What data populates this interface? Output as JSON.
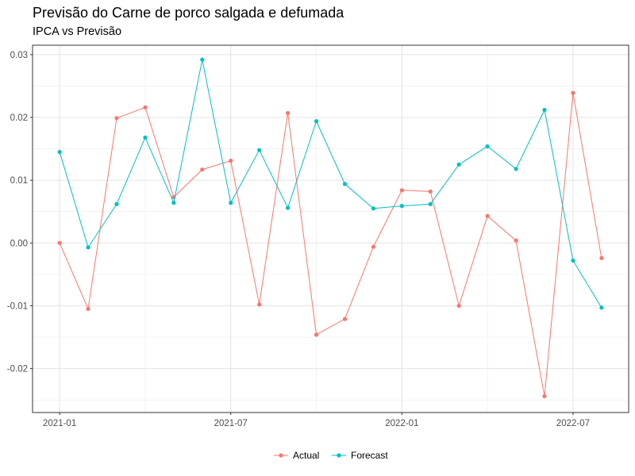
{
  "title": "Previsão do Carne de porco salgada e defumada",
  "subtitle": "IPCA vs Previsão",
  "chart_data": {
    "type": "line",
    "title": "Previsão do Carne de porco salgada e defumada",
    "subtitle": "IPCA vs Previsão",
    "xlabel": "",
    "ylabel": "",
    "x": [
      "2021-01",
      "2021-02",
      "2021-03",
      "2021-04",
      "2021-05",
      "2021-06",
      "2021-07",
      "2021-08",
      "2021-09",
      "2021-10",
      "2021-11",
      "2021-12",
      "2022-01",
      "2022-02",
      "2022-03",
      "2022-04",
      "2022-05",
      "2022-06",
      "2022-07",
      "2022-08"
    ],
    "x_ticks": [
      "2021-01",
      "2021-07",
      "2022-01",
      "2022-07"
    ],
    "y_ticks": [
      -0.02,
      -0.01,
      0.0,
      0.01,
      0.02,
      0.03
    ],
    "y_tick_labels": [
      "-0.02",
      "-0.01",
      "0.00",
      "0.01",
      "0.02",
      "0.03"
    ],
    "ylim": [
      -0.027,
      0.0315
    ],
    "grid": true,
    "legend_position": "bottom",
    "series": [
      {
        "name": "Actual",
        "color": "#F8766D",
        "values": [
          0.0,
          -0.0105,
          0.0199,
          0.0216,
          0.0073,
          0.0117,
          0.0131,
          -0.0098,
          0.0207,
          -0.0146,
          -0.0121,
          -0.0006,
          0.0084,
          0.0082,
          -0.01,
          0.0043,
          0.0004,
          -0.0244,
          0.0239,
          -0.0024
        ]
      },
      {
        "name": "Forecast",
        "color": "#00BFC4",
        "values": [
          0.0145,
          -0.0007,
          0.0062,
          0.0168,
          0.0064,
          0.0292,
          0.0064,
          0.0148,
          0.0056,
          0.0194,
          0.0094,
          0.0055,
          0.0059,
          0.0062,
          0.0125,
          0.0154,
          0.0118,
          0.0212,
          -0.0028,
          -0.0103
        ]
      }
    ]
  }
}
